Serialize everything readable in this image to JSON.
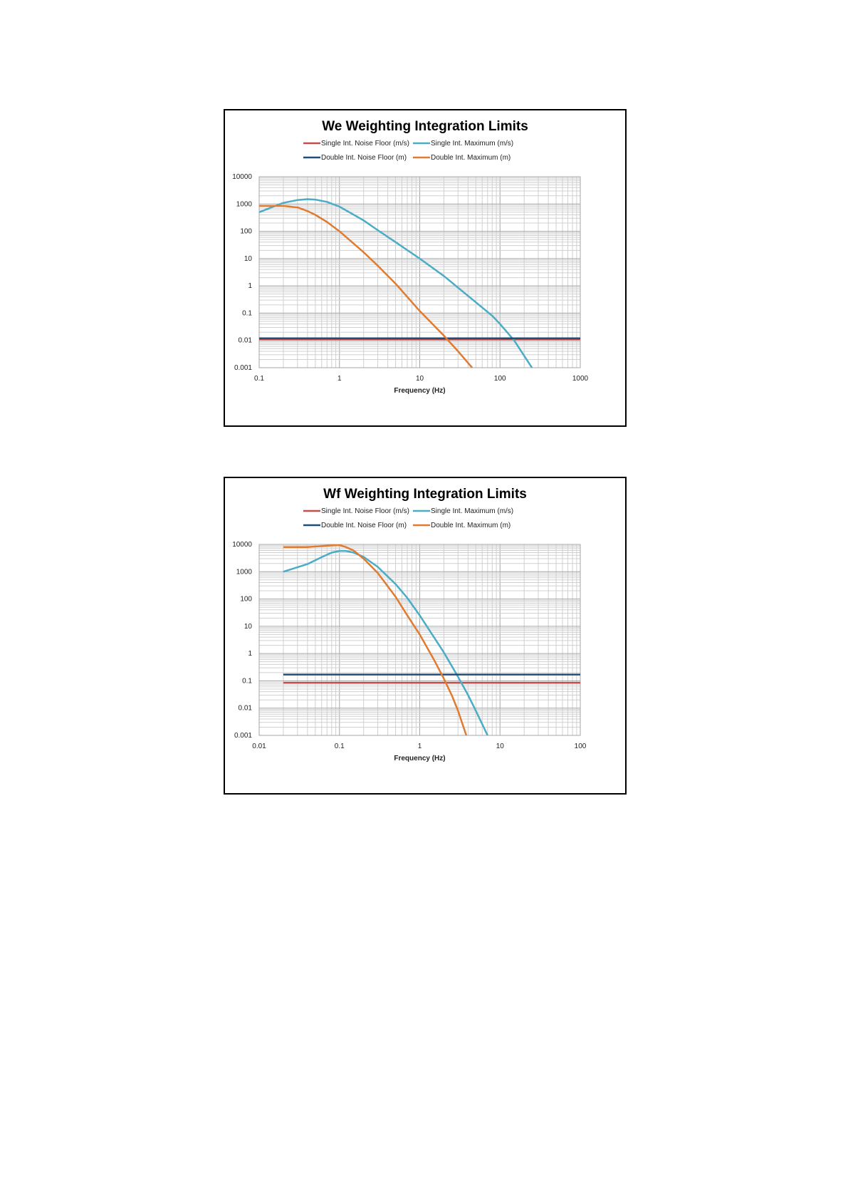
{
  "colors": {
    "single_noise_floor": "#c0504d",
    "single_maximum": "#4bacc6",
    "double_noise_floor": "#1f4e79",
    "double_maximum": "#e07b30",
    "grid": "#bfbfbf"
  },
  "chart_data": [
    {
      "type": "line",
      "title": "We Weighting Integration Limits",
      "xlabel": "Frequency (Hz)",
      "ylabel": "",
      "x_scale": "log",
      "y_scale": "log",
      "xlim": [
        0.1,
        1000
      ],
      "ylim": [
        0.001,
        10000
      ],
      "x_ticks": [
        "0.1",
        "1",
        "10",
        "100",
        "1000"
      ],
      "y_ticks": [
        "10000",
        "1000",
        "100",
        "10",
        "1",
        "0.1",
        "0.01",
        "0.001"
      ],
      "grid": true,
      "legend_position": "top",
      "series": [
        {
          "name": "Single Int. Noise Floor (m/s)",
          "color_key": "single_noise_floor",
          "x": [
            0.1,
            1000
          ],
          "y": [
            0.011,
            0.011
          ]
        },
        {
          "name": "Single Int. Maximum (m/s)",
          "color_key": "single_maximum",
          "x": [
            0.1,
            0.15,
            0.2,
            0.3,
            0.4,
            0.5,
            0.7,
            1,
            2,
            3,
            5,
            10,
            20,
            50,
            80,
            100,
            150,
            250
          ],
          "y": [
            500,
            800,
            1100,
            1400,
            1500,
            1450,
            1200,
            800,
            250,
            110,
            40,
            10,
            2.3,
            0.25,
            0.08,
            0.04,
            0.01,
            0.001
          ]
        },
        {
          "name": "Double Int. Noise Floor (m)",
          "color_key": "double_noise_floor",
          "x": [
            0.1,
            1000
          ],
          "y": [
            0.012,
            0.012
          ]
        },
        {
          "name": "Double Int. Maximum (m)",
          "color_key": "double_maximum",
          "x": [
            0.1,
            0.2,
            0.3,
            0.4,
            0.5,
            0.7,
            1,
            2,
            3,
            5,
            10,
            20,
            30,
            45
          ],
          "y": [
            850,
            850,
            750,
            550,
            400,
            220,
            100,
            17,
            5.5,
            1.2,
            0.12,
            0.015,
            0.004,
            0.001
          ]
        }
      ]
    },
    {
      "type": "line",
      "title": "Wf Weighting Integration Limits",
      "xlabel": "Frequency (Hz)",
      "ylabel": "",
      "x_scale": "log",
      "y_scale": "log",
      "xlim": [
        0.01,
        100
      ],
      "ylim": [
        0.001,
        10000
      ],
      "x_ticks": [
        "0.01",
        "0.1",
        "1",
        "10",
        "100"
      ],
      "y_ticks": [
        "10000",
        "1000",
        "100",
        "10",
        "1",
        "0.1",
        "0.01",
        "0.001"
      ],
      "grid": true,
      "legend_position": "top",
      "series": [
        {
          "name": "Single Int. Noise Floor (m/s)",
          "color_key": "single_noise_floor",
          "x": [
            0.02,
            100
          ],
          "y": [
            0.085,
            0.085
          ]
        },
        {
          "name": "Single Int. Maximum (m/s)",
          "color_key": "single_maximum",
          "x": [
            0.02,
            0.04,
            0.06,
            0.08,
            0.1,
            0.12,
            0.15,
            0.2,
            0.3,
            0.5,
            0.7,
            1,
            1.5,
            2,
            3,
            4,
            5,
            7
          ],
          "y": [
            1000,
            1900,
            3400,
            5000,
            5800,
            5800,
            5000,
            3500,
            1500,
            350,
            110,
            25,
            4,
            1.1,
            0.14,
            0.03,
            0.008,
            0.001
          ]
        },
        {
          "name": "Double Int. Noise Floor (m)",
          "color_key": "double_noise_floor",
          "x": [
            0.02,
            100
          ],
          "y": [
            0.17,
            0.17
          ]
        },
        {
          "name": "Double Int. Maximum (m)",
          "color_key": "double_maximum",
          "x": [
            0.02,
            0.04,
            0.07,
            0.1,
            0.12,
            0.15,
            0.2,
            0.3,
            0.5,
            0.7,
            1,
            1.5,
            2,
            2.5,
            3,
            3.8
          ],
          "y": [
            8000,
            8000,
            9000,
            9500,
            8000,
            6000,
            3000,
            900,
            120,
            25,
            5,
            0.6,
            0.12,
            0.03,
            0.008,
            0.001
          ]
        }
      ]
    }
  ]
}
